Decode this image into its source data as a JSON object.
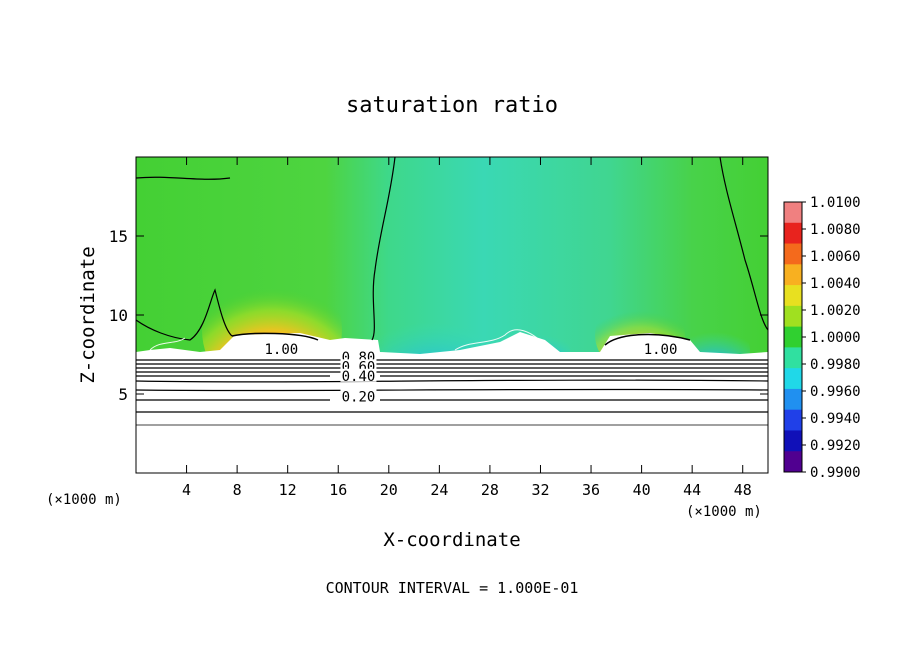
{
  "chart_data": {
    "type": "heatmap",
    "title": "saturation ratio",
    "xlabel": "X-coordinate",
    "ylabel": "Z-coordinate",
    "x_unit_left": "(×1000 m)",
    "x_unit_right": "(×1000 m)",
    "footer": "CONTOUR INTERVAL = 1.000E-01",
    "xlim": [
      0,
      50
    ],
    "ylim": [
      0,
      20
    ],
    "xticks": [
      4,
      8,
      12,
      16,
      20,
      24,
      28,
      32,
      36,
      40,
      44,
      48
    ],
    "yticks": [
      5,
      10,
      15
    ],
    "colorbar": {
      "min": 0.99,
      "max": 1.01,
      "labels": [
        "1.0100",
        "1.0080",
        "1.0060",
        "1.0040",
        "1.0020",
        "1.0000",
        "0.9980",
        "0.9960",
        "0.9940",
        "0.9920",
        "0.9900"
      ],
      "colors": [
        "#f08080",
        "#e8231e",
        "#f46a1c",
        "#f8b020",
        "#e8e020",
        "#a0e020",
        "#30d030",
        "#30e0a0",
        "#20d8e8",
        "#2090f0",
        "#2040e8",
        "#1010b8",
        "#500090"
      ]
    },
    "contour_labels": [
      {
        "text": "1.00",
        "x": 11.5,
        "y": 7.6
      },
      {
        "text": "0.80",
        "x": 17.6,
        "y": 7.1
      },
      {
        "text": "0.60",
        "x": 17.6,
        "y": 6.5
      },
      {
        "text": "0.40",
        "x": 17.6,
        "y": 5.9
      },
      {
        "text": "0.20",
        "x": 17.6,
        "y": 4.6
      },
      {
        "text": "1.00",
        "x": 41.5,
        "y": 7.6
      }
    ]
  }
}
